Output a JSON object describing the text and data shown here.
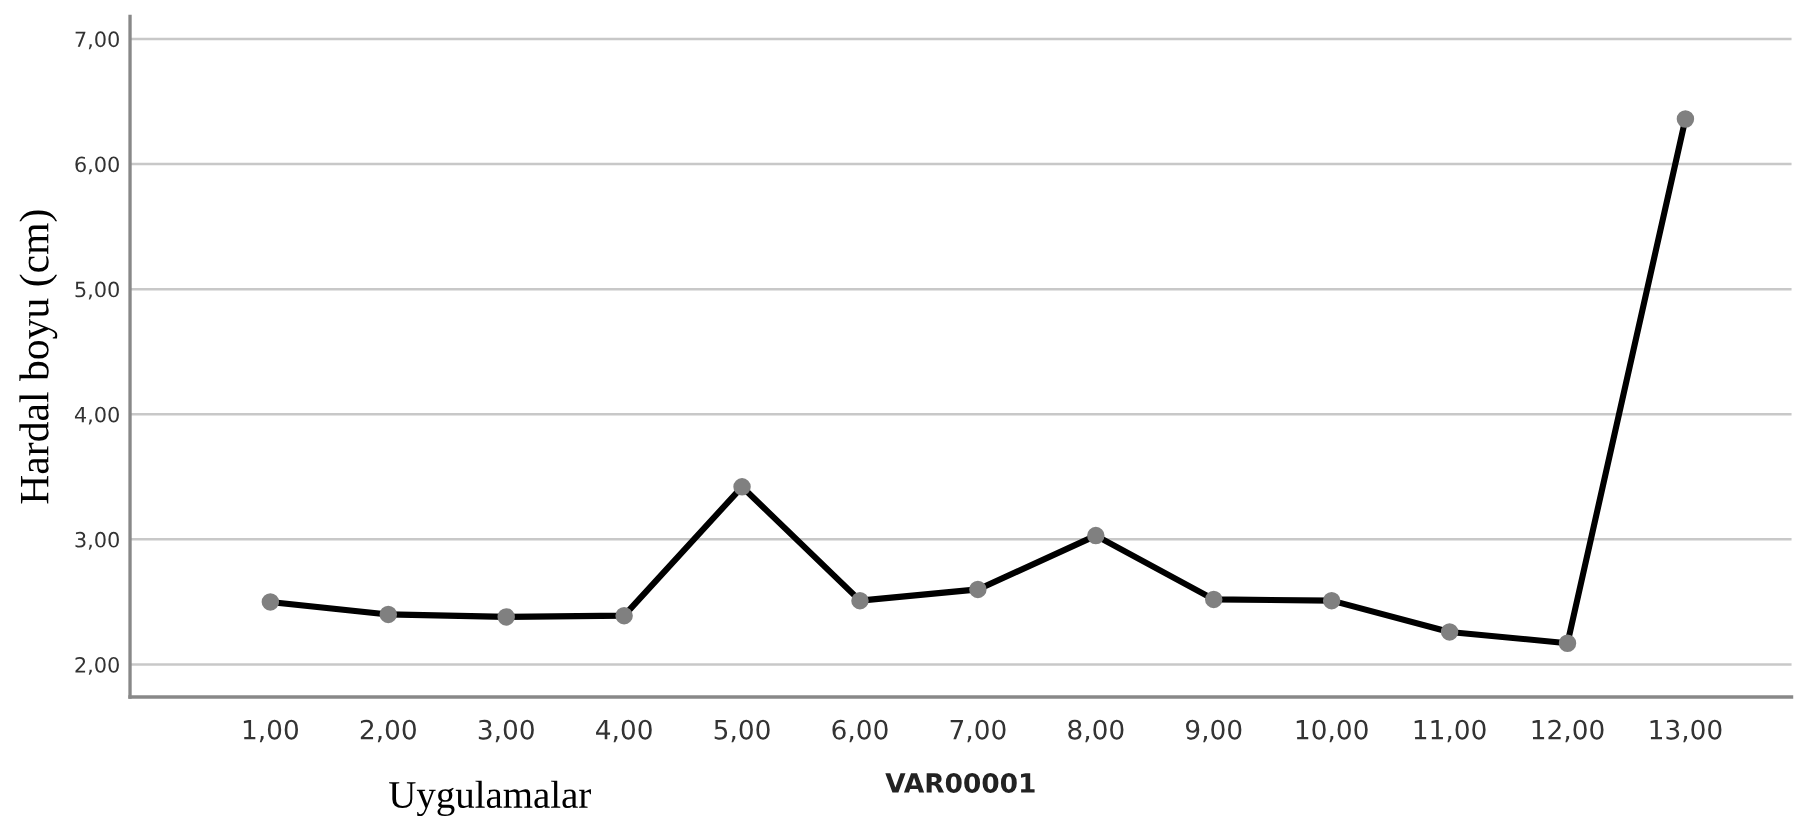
{
  "chart_data": {
    "type": "line",
    "xlabel": "VAR00001",
    "ylabel": "Hardal boyu (cm)",
    "annotations": [
      "Uygulamalar"
    ],
    "categories": [
      "1,00",
      "2,00",
      "3,00",
      "4,00",
      "5,00",
      "6,00",
      "7,00",
      "8,00",
      "9,00",
      "10,00",
      "11,00",
      "12,00",
      "13,00"
    ],
    "series": [
      {
        "color": "#000000",
        "colors": [
          "#808080",
          "#808080",
          "#808080",
          "#808080",
          "#808080",
          "#808080",
          "#808080",
          "#808080",
          "#808080",
          "#808080",
          "#808080",
          "#808080",
          "#808080"
        ],
        "values": [
          2.5,
          2.4,
          2.38,
          2.39,
          3.42,
          2.51,
          2.6,
          3.03,
          2.52,
          2.51,
          2.26,
          2.17,
          6.36
        ]
      }
    ],
    "ylim": [
      1.74,
      7.18
    ],
    "yticks": [
      {
        "value": 2,
        "label": "2,00"
      },
      {
        "value": 3,
        "label": "3,00"
      },
      {
        "value": 4,
        "label": "4,00"
      },
      {
        "value": 5,
        "label": "5,00"
      },
      {
        "value": 6,
        "label": "6,00"
      },
      {
        "value": 7,
        "label": "7,00"
      }
    ],
    "grid": "y",
    "marker": "circle",
    "line_style": "solid",
    "legend": false
  }
}
